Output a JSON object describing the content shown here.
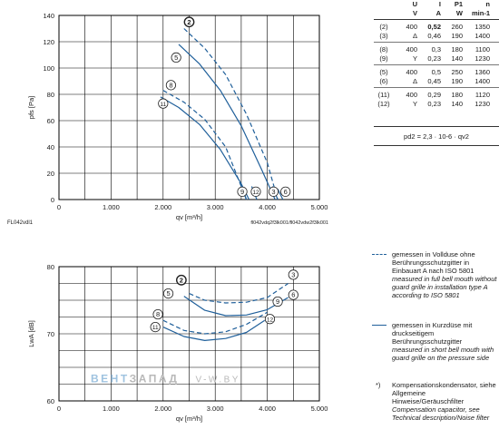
{
  "colors": {
    "curve": "#1f5f9a",
    "grid": "#000000",
    "axis": "#000000"
  },
  "table": {
    "header": [
      "U",
      "I",
      "P1",
      "n"
    ],
    "units": [
      "V",
      "A",
      "W",
      "min-1"
    ],
    "groups": [
      [
        {
          "id": "2",
          "U": "400",
          "I": "0,52",
          "P": "260",
          "n": "1350",
          "bold": true
        },
        {
          "id": "3",
          "U": "Δ",
          "I": "0,46",
          "P": "190",
          "n": "1400",
          "bold": false
        }
      ],
      [
        {
          "id": "8",
          "U": "400",
          "I": "0,3",
          "P": "180",
          "n": "1100",
          "bold": false
        },
        {
          "id": "9",
          "U": "Y",
          "I": "0,23",
          "P": "140",
          "n": "1230",
          "bold": false
        }
      ],
      [
        {
          "id": "5",
          "U": "400",
          "I": "0,5",
          "P": "250",
          "n": "1360",
          "bold": false
        },
        {
          "id": "6",
          "U": "Δ",
          "I": "0,45",
          "P": "190",
          "n": "1400",
          "bold": false
        }
      ],
      [
        {
          "id": "11",
          "U": "400",
          "I": "0,29",
          "P": "180",
          "n": "1120",
          "bold": false
        },
        {
          "id": "12",
          "U": "Y",
          "I": "0,23",
          "P": "140",
          "n": "1230",
          "bold": false
        }
      ]
    ],
    "formula": "pd2 = 2,3 · 10-6 · qv2"
  },
  "legend": {
    "dashed_de": "gemessen in Vollduse ohne Berührungsschutzgitter in Einbauart A nach ISO 5801",
    "dashed_en": "measured in full bell mouth without guard grille in installation type A according to ISO 5801",
    "solid_de": "gemessen in Kurzdüse mit druckseitigem Berührungsschutzgitter",
    "solid_en": "measured in short bell mouth with guard grille on the pressure side",
    "note_mark": "*)",
    "note_de": "Kompensationskondensator, siehe Allgemeine Hinweise/Geräuschfilter",
    "note_en": "Compensation capacitor, see Technical description/Noise filter"
  },
  "watermark": {
    "part1": "ВЕНТ",
    "part2": "ЗАПАД",
    "url": "V-W.BY"
  },
  "chart_data": [
    {
      "type": "line",
      "xlabel": "qv [m³/h]",
      "ylabel": "pfs [Pa]",
      "xlim": [
        0,
        5000
      ],
      "ylim": [
        0,
        140
      ],
      "xticks": [
        "0",
        "1.000",
        "2.000",
        "3.000",
        "4.000",
        "5.000"
      ],
      "yticks": [
        "0",
        "20",
        "40",
        "60",
        "80",
        "100",
        "120",
        "140"
      ],
      "left_note": "FL042vdl1",
      "right_note": "fl042vdq2f3lk001/fl042vdw2f3lk001",
      "grid": true,
      "series": [
        {
          "name": "2",
          "style": "dashed",
          "x": [
            2400,
            2800,
            3200,
            3600,
            4000,
            4200
          ],
          "y": [
            130,
            115,
            95,
            65,
            28,
            0
          ]
        },
        {
          "name": "3",
          "style": "solid",
          "x": [
            4100,
            4200
          ],
          "y": [
            10,
            0
          ]
        },
        {
          "name": "5",
          "style": "solid",
          "x": [
            2300,
            2700,
            3100,
            3500,
            3900,
            4150
          ],
          "y": [
            118,
            103,
            83,
            56,
            22,
            0
          ]
        },
        {
          "name": "6",
          "style": "solid",
          "x": [
            4200,
            4300
          ],
          "y": [
            8,
            0
          ]
        },
        {
          "name": "8",
          "style": "dashed",
          "x": [
            2000,
            2400,
            2800,
            3200,
            3600
          ],
          "y": [
            83,
            74,
            61,
            40,
            0
          ]
        },
        {
          "name": "9",
          "style": "solid",
          "x": [
            3500,
            3600
          ],
          "y": [
            10,
            0
          ]
        },
        {
          "name": "11",
          "style": "solid",
          "x": [
            1950,
            2300,
            2700,
            3100,
            3500,
            3650
          ],
          "y": [
            78,
            70,
            57,
            38,
            12,
            0
          ]
        },
        {
          "name": "12",
          "style": "solid",
          "x": [
            3700,
            3800
          ],
          "y": [
            10,
            0
          ]
        }
      ],
      "curve_labels": [
        {
          "id": "2",
          "x": 2500,
          "y": 135
        },
        {
          "id": "5",
          "x": 2250,
          "y": 108
        },
        {
          "id": "8",
          "x": 2150,
          "y": 87
        },
        {
          "id": "11",
          "x": 2000,
          "y": 73
        },
        {
          "id": "9",
          "x": 3520,
          "y": 6
        },
        {
          "id": "12",
          "x": 3780,
          "y": 6
        },
        {
          "id": "3",
          "x": 4120,
          "y": 6
        },
        {
          "id": "6",
          "x": 4350,
          "y": 6
        }
      ]
    },
    {
      "type": "line",
      "xlabel": "qv [m³/h]",
      "ylabel": "LwA [dB]",
      "xlim": [
        0,
        5000
      ],
      "ylim": [
        60,
        80
      ],
      "xticks": [
        "0",
        "1.000",
        "2.000",
        "3.000",
        "4.000",
        "5.000"
      ],
      "yticks": [
        "60",
        "70",
        "80"
      ],
      "grid": true,
      "series": [
        {
          "name": "2",
          "style": "dashed",
          "x": [
            2500,
            2800,
            3200,
            3600,
            4000,
            4400
          ],
          "y": [
            76,
            75,
            74.6,
            74.7,
            75.4,
            77.5
          ]
        },
        {
          "name": "5",
          "style": "solid",
          "x": [
            2400,
            2800,
            3200,
            3600,
            4000,
            4400
          ],
          "y": [
            75.6,
            73.5,
            72.7,
            72.8,
            73.6,
            75.4
          ]
        },
        {
          "name": "8",
          "style": "dashed",
          "x": [
            2000,
            2400,
            2800,
            3200,
            3600,
            4000
          ],
          "y": [
            72,
            70.5,
            70,
            70.3,
            71.4,
            73.2
          ]
        },
        {
          "name": "11",
          "style": "solid",
          "x": [
            2000,
            2400,
            2800,
            3200,
            3600,
            3950
          ],
          "y": [
            71,
            69.6,
            69,
            69.3,
            70.2,
            72
          ]
        }
      ],
      "curve_labels": [
        {
          "id": "2",
          "x": 2350,
          "y": 78
        },
        {
          "id": "5",
          "x": 2100,
          "y": 76
        },
        {
          "id": "8",
          "x": 1900,
          "y": 72.9
        },
        {
          "id": "11",
          "x": 1850,
          "y": 71
        },
        {
          "id": "3",
          "x": 4500,
          "y": 78.8
        },
        {
          "id": "9",
          "x": 4200,
          "y": 74.8
        },
        {
          "id": "6",
          "x": 4500,
          "y": 75.8
        },
        {
          "id": "12",
          "x": 4050,
          "y": 72.2
        }
      ]
    }
  ]
}
